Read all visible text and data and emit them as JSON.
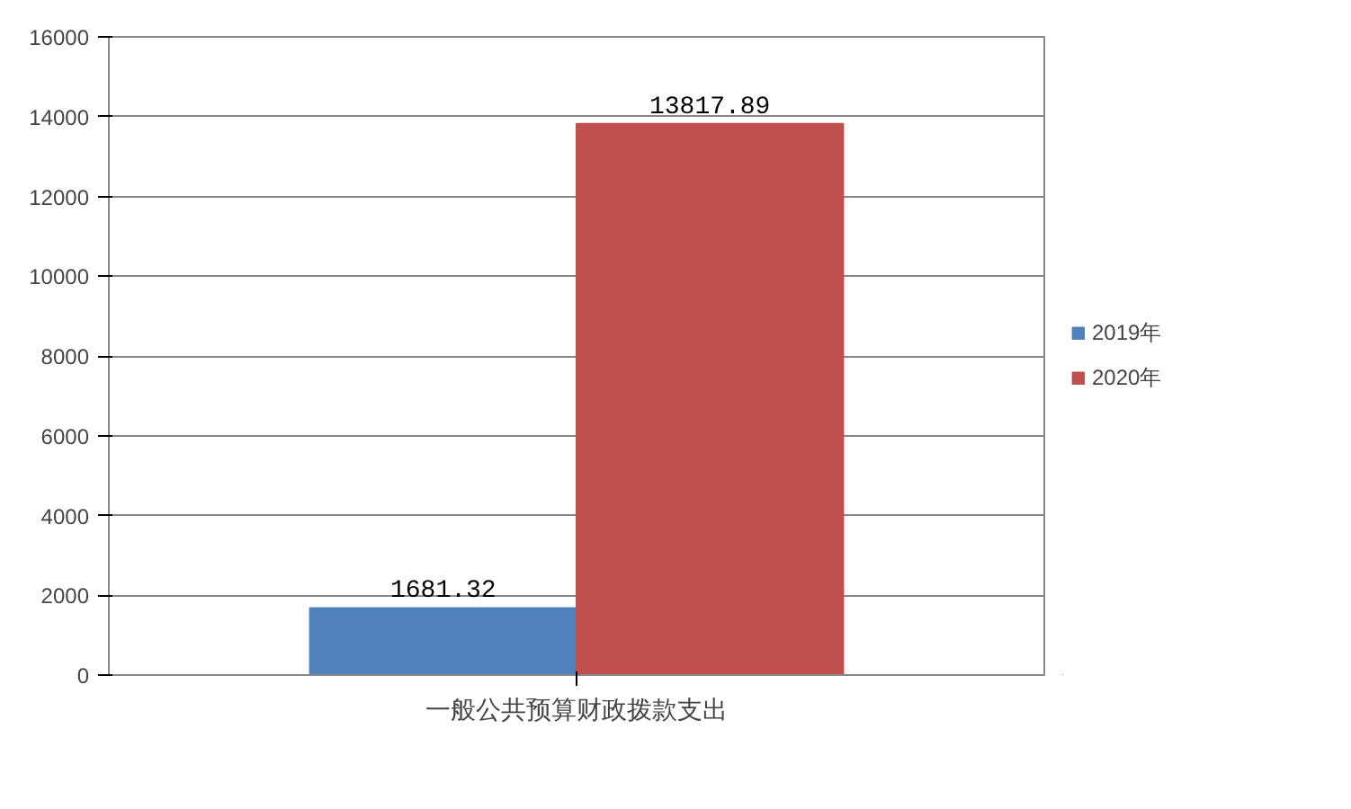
{
  "chart_data": {
    "type": "bar",
    "categories": [
      "一般公共预算财政拨款支出"
    ],
    "series": [
      {
        "name": "2019年",
        "color": "#4f81bd",
        "values": [
          1681.32
        ]
      },
      {
        "name": "2020年",
        "color": "#c0504d",
        "values": [
          13817.89
        ]
      }
    ],
    "ylim": [
      0,
      16000
    ],
    "yticks": [
      0,
      2000,
      4000,
      6000,
      8000,
      10000,
      12000,
      14000,
      16000
    ],
    "grid": "y",
    "legend": "right",
    "data_labels": true
  }
}
